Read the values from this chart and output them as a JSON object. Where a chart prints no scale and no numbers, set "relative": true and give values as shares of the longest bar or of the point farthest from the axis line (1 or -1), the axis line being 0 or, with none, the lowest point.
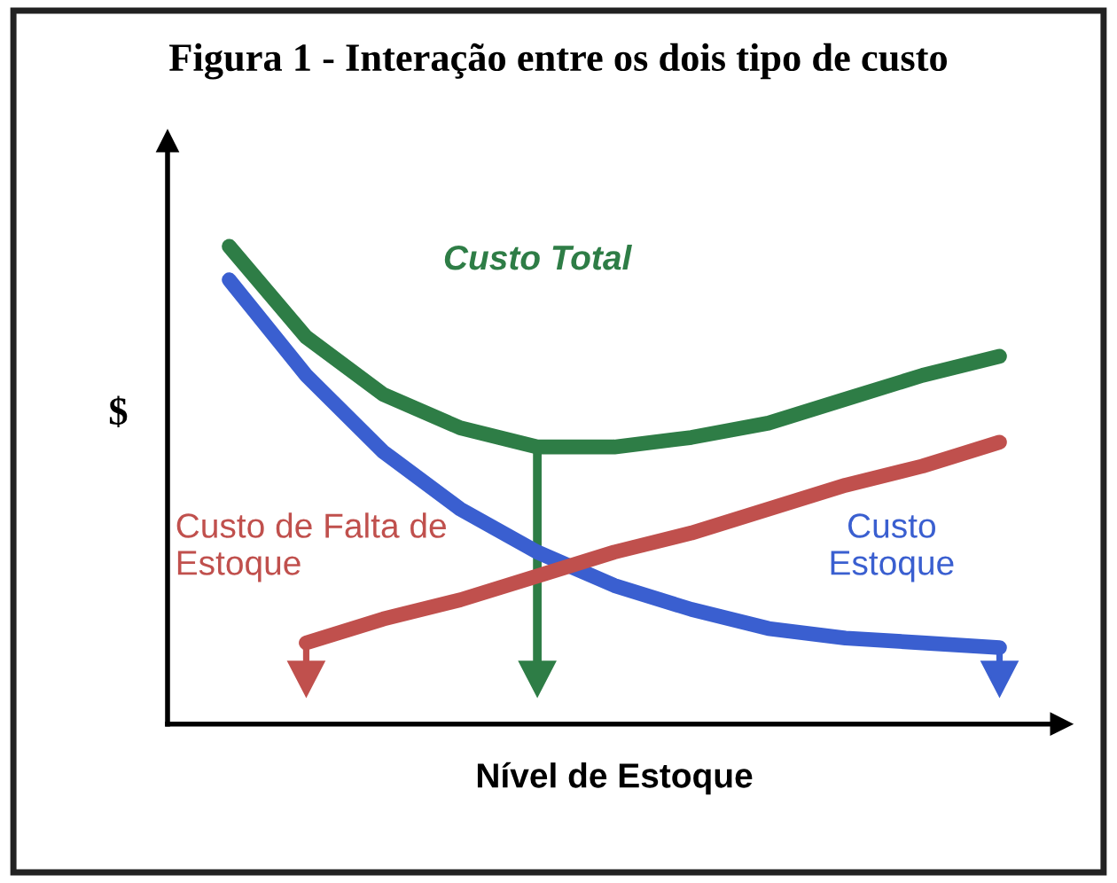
{
  "chart_data": {
    "type": "line",
    "title": "Figura 1 - Interação entre os dois tipo de custo",
    "xlabel": "Nível de Estoque",
    "ylabel": "$",
    "relative": true,
    "legend": false,
    "grid": false,
    "marker": "none",
    "line_style": "solid",
    "categories": [
      null,
      null,
      null,
      null,
      null,
      null,
      null,
      null,
      null,
      null,
      null
    ],
    "series": [
      {
        "name": "Custo Total",
        "color": "#2e7d46",
        "values": [
          1,
          0.81,
          0.69,
          0.62,
          0.58,
          0.58,
          0.6,
          0.63,
          0.68,
          0.73,
          0.77
        ]
      },
      {
        "name": "Custo Estoque",
        "color": "#3a5fd0",
        "values": [
          0.93,
          0.73,
          0.57,
          0.45,
          0.36,
          0.29,
          0.24,
          0.2,
          0.18,
          0.17,
          0.16
        ]
      },
      {
        "name": "Custo de Falta de Estoque",
        "color": "#c0504d",
        "values": [
          null,
          0.17,
          0.22,
          0.26,
          0.31,
          0.36,
          0.4,
          0.45,
          0.5,
          0.54,
          0.59
        ]
      }
    ]
  }
}
